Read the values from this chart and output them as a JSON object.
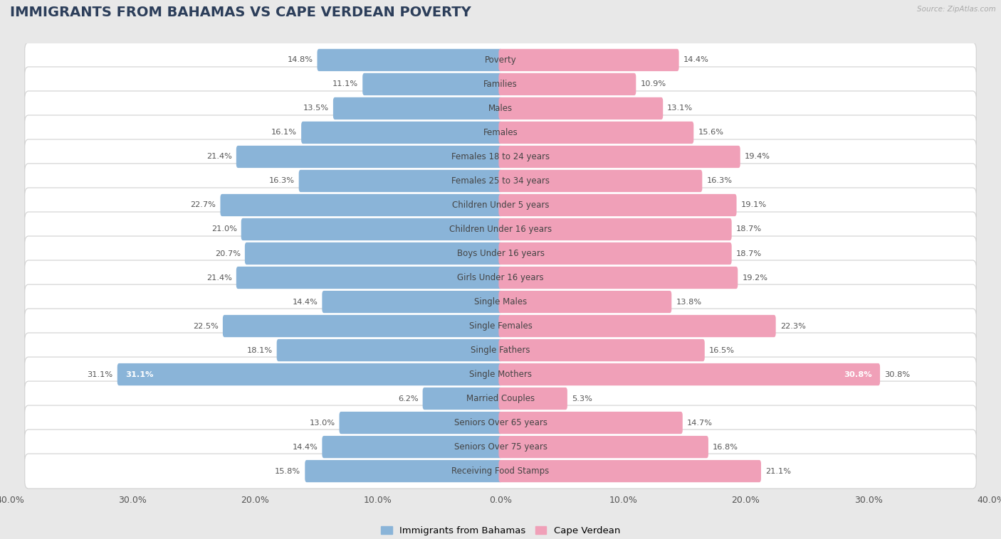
{
  "title": "IMMIGRANTS FROM BAHAMAS VS CAPE VERDEAN POVERTY",
  "source": "Source: ZipAtlas.com",
  "categories": [
    "Poverty",
    "Families",
    "Males",
    "Females",
    "Females 18 to 24 years",
    "Females 25 to 34 years",
    "Children Under 5 years",
    "Children Under 16 years",
    "Boys Under 16 years",
    "Girls Under 16 years",
    "Single Males",
    "Single Females",
    "Single Fathers",
    "Single Mothers",
    "Married Couples",
    "Seniors Over 65 years",
    "Seniors Over 75 years",
    "Receiving Food Stamps"
  ],
  "bahamas_values": [
    14.8,
    11.1,
    13.5,
    16.1,
    21.4,
    16.3,
    22.7,
    21.0,
    20.7,
    21.4,
    14.4,
    22.5,
    18.1,
    31.1,
    6.2,
    13.0,
    14.4,
    15.8
  ],
  "capeverdean_values": [
    14.4,
    10.9,
    13.1,
    15.6,
    19.4,
    16.3,
    19.1,
    18.7,
    18.7,
    19.2,
    13.8,
    22.3,
    16.5,
    30.8,
    5.3,
    14.7,
    16.8,
    21.1
  ],
  "bahamas_color": "#8ab4d8",
  "capeverdean_color": "#f0a0b8",
  "background_color": "#e8e8e8",
  "row_color": "#ffffff",
  "row_border_color": "#d0d0d0",
  "xlim": 40.0,
  "bar_height": 0.62,
  "legend_labels": [
    "Immigrants from Bahamas",
    "Cape Verdean"
  ],
  "title_fontsize": 14,
  "label_fontsize": 8.5,
  "value_fontsize": 8.2,
  "axis_fontsize": 9
}
